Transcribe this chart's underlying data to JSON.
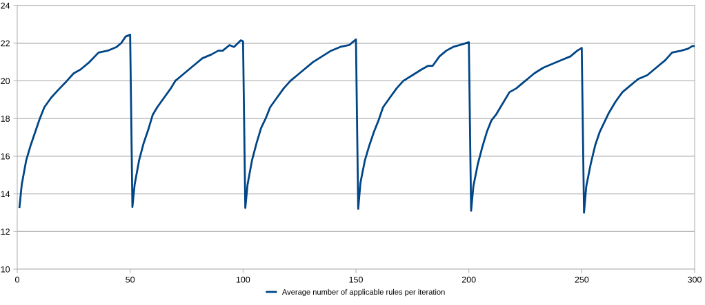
{
  "chart_data": {
    "type": "line",
    "xlim": [
      0,
      300
    ],
    "ylim": [
      10,
      24
    ],
    "xticks": [
      0,
      50,
      100,
      150,
      200,
      250,
      300
    ],
    "yticks": [
      10,
      12,
      14,
      16,
      18,
      20,
      22,
      24
    ],
    "grid": "y",
    "legend": "bottom",
    "marker": "none",
    "line_style": "solid",
    "series": [
      {
        "name": "Average number of applicable rules per iteration",
        "color": "#004586",
        "x": [
          1,
          2,
          4,
          6,
          8,
          10,
          12,
          15,
          18,
          22,
          25,
          28,
          32,
          36,
          40,
          44,
          46,
          48,
          50,
          51,
          52,
          54,
          56,
          58,
          60,
          62,
          65,
          68,
          70,
          74,
          78,
          82,
          86,
          89,
          91,
          94,
          96,
          99,
          100,
          101,
          102,
          104,
          106,
          108,
          110,
          112,
          115,
          118,
          121,
          124,
          127,
          131,
          135,
          139,
          143,
          147,
          150,
          151,
          152,
          154,
          156,
          158,
          160,
          162,
          165,
          168,
          171,
          175,
          179,
          182,
          184,
          187,
          190,
          193,
          196,
          200,
          201,
          202,
          204,
          206,
          208,
          210,
          212,
          215,
          218,
          221,
          225,
          229,
          233,
          237,
          241,
          245,
          248,
          250,
          251,
          252,
          254,
          256,
          258,
          260,
          262,
          265,
          268,
          271,
          275,
          279,
          283,
          287,
          290,
          294,
          297,
          299,
          300
        ],
        "values": [
          13.3,
          14.5,
          15.8,
          16.6,
          17.3,
          18.0,
          18.6,
          19.1,
          19.5,
          20.0,
          20.4,
          20.6,
          21.0,
          21.5,
          21.6,
          21.8,
          22.0,
          22.35,
          22.45,
          13.3,
          14.5,
          15.8,
          16.7,
          17.4,
          18.2,
          18.6,
          19.1,
          19.6,
          20.0,
          20.4,
          20.8,
          21.2,
          21.4,
          21.6,
          21.6,
          21.9,
          21.8,
          22.15,
          22.1,
          13.25,
          14.5,
          15.8,
          16.7,
          17.5,
          18.0,
          18.6,
          19.1,
          19.6,
          20.0,
          20.3,
          20.6,
          21.0,
          21.3,
          21.6,
          21.8,
          21.9,
          22.2,
          13.2,
          14.6,
          15.8,
          16.6,
          17.3,
          17.9,
          18.6,
          19.1,
          19.6,
          20.0,
          20.3,
          20.6,
          20.8,
          20.8,
          21.3,
          21.6,
          21.8,
          21.9,
          22.05,
          13.1,
          14.4,
          15.6,
          16.5,
          17.3,
          17.9,
          18.2,
          18.8,
          19.4,
          19.6,
          20.0,
          20.4,
          20.7,
          20.9,
          21.1,
          21.3,
          21.6,
          21.75,
          13.0,
          14.4,
          15.6,
          16.6,
          17.3,
          17.8,
          18.3,
          18.9,
          19.4,
          19.7,
          20.1,
          20.3,
          20.7,
          21.1,
          21.5,
          21.6,
          21.7,
          21.85,
          21.85
        ]
      }
    ]
  }
}
